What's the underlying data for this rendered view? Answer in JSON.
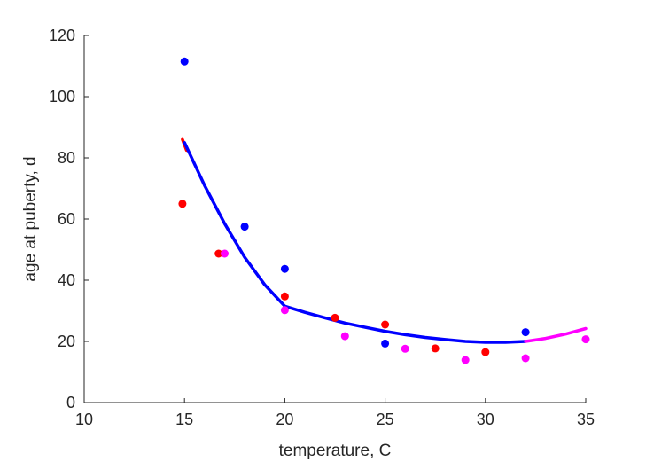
{
  "chart_data": {
    "type": "scatter",
    "title": "",
    "xlabel": "temperature, C",
    "ylabel": "age at puberty, d",
    "xlim": [
      10,
      35
    ],
    "ylim": [
      0,
      120
    ],
    "xticks": [
      10,
      15,
      20,
      25,
      30,
      35
    ],
    "yticks": [
      0,
      20,
      40,
      60,
      80,
      100,
      120
    ],
    "grid": false,
    "legend": "none",
    "series": [
      {
        "color": "#0000ff",
        "points": [
          {
            "x": 15,
            "y": 111.5
          },
          {
            "x": 18,
            "y": 57.5
          },
          {
            "x": 20,
            "y": 43.7
          },
          {
            "x": 25,
            "y": 19.3
          },
          {
            "x": 32,
            "y": 23
          }
        ]
      },
      {
        "color": "#ff0000",
        "points": [
          {
            "x": 14.9,
            "y": 65
          },
          {
            "x": 16.7,
            "y": 48.7
          },
          {
            "x": 20,
            "y": 34.7
          },
          {
            "x": 22.5,
            "y": 27.7
          },
          {
            "x": 25,
            "y": 25.5
          },
          {
            "x": 27.5,
            "y": 17.7
          },
          {
            "x": 30,
            "y": 16.5
          }
        ]
      },
      {
        "color": "#ff00ff",
        "points": [
          {
            "x": 17,
            "y": 48.7
          },
          {
            "x": 20,
            "y": 30.2
          },
          {
            "x": 23,
            "y": 21.7
          },
          {
            "x": 26,
            "y": 17.6
          },
          {
            "x": 29,
            "y": 13.9
          },
          {
            "x": 32,
            "y": 14.5
          },
          {
            "x": 35,
            "y": 20.7
          }
        ]
      }
    ],
    "fit_curves": [
      {
        "color": "#ff0000",
        "points": [
          [
            14.9,
            86
          ],
          [
            15.1,
            82.5
          ]
        ]
      },
      {
        "color": "#0000ff",
        "points": [
          [
            15,
            85
          ],
          [
            16,
            71
          ],
          [
            17,
            58.5
          ],
          [
            18,
            47.5
          ],
          [
            19,
            38.5
          ],
          [
            20,
            31.5
          ],
          [
            21,
            29.5
          ],
          [
            22,
            27.7
          ],
          [
            23,
            26
          ],
          [
            24,
            24.6
          ],
          [
            25,
            23.3
          ],
          [
            26,
            22.2
          ],
          [
            27,
            21.3
          ],
          [
            28,
            20.6
          ],
          [
            29,
            20
          ],
          [
            30,
            19.7
          ],
          [
            31,
            19.7
          ],
          [
            32,
            20
          ]
        ]
      },
      {
        "color": "#ff00ff",
        "points": [
          [
            32,
            20
          ],
          [
            33,
            21
          ],
          [
            34,
            22.4
          ],
          [
            35,
            24.2
          ]
        ]
      }
    ]
  }
}
